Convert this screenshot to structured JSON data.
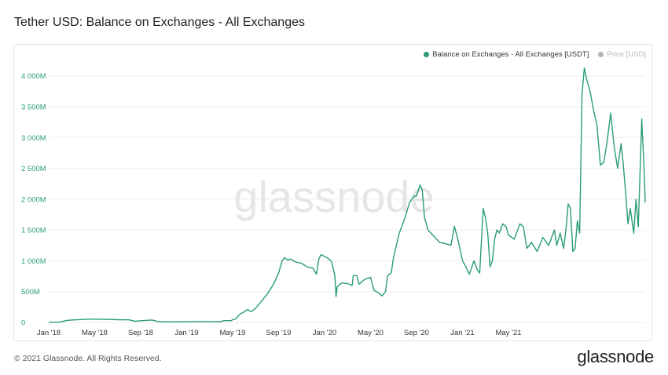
{
  "page": {
    "title": "Tether USD: Balance on Exchanges - All Exchanges",
    "copyright": "© 2021 Glassnode. All Rights Reserved.",
    "brand": "glassnode",
    "watermark": "glassnode"
  },
  "colors": {
    "series": "#2a9d74",
    "price": "#9a9a9a",
    "grid": "#eeeeee"
  },
  "chart_data": {
    "type": "line",
    "title": "Tether USD: Balance on Exchanges - All Exchanges",
    "legend_position": "top-right",
    "grid": true,
    "ylim": [
      0,
      4200
    ],
    "y_ticks": [
      {
        "value": 0,
        "label": "0"
      },
      {
        "value": 500,
        "label": "500M"
      },
      {
        "value": 1000,
        "label": "1 000M"
      },
      {
        "value": 1500,
        "label": "1 500M"
      },
      {
        "value": 2000,
        "label": "2 000M"
      },
      {
        "value": 2500,
        "label": "2 500M"
      },
      {
        "value": 3000,
        "label": "3 000M"
      },
      {
        "value": 3500,
        "label": "3 500M"
      },
      {
        "value": 4000,
        "label": "4 000M"
      }
    ],
    "x_ticks": [
      "Jan '18",
      "May '18",
      "Sep '18",
      "Jan '19",
      "May '19",
      "Sep '19",
      "Jan '20",
      "May '20",
      "Sep '20",
      "Jan '21",
      "May '21"
    ],
    "x_range_months": [
      0,
      40.7
    ],
    "series": [
      {
        "name": "Balance on Exchanges - All Exchanges [USDT]",
        "unit": "M",
        "points": [
          [
            0,
            2
          ],
          [
            0.6,
            5
          ],
          [
            1,
            8
          ],
          [
            1.5,
            30
          ],
          [
            2,
            40
          ],
          [
            3,
            48
          ],
          [
            4,
            55
          ],
          [
            5,
            50
          ],
          [
            6,
            45
          ],
          [
            7,
            42
          ],
          [
            7.5,
            20
          ],
          [
            8,
            28
          ],
          [
            9,
            40
          ],
          [
            9.5,
            15
          ],
          [
            10,
            10
          ],
          [
            11,
            10
          ],
          [
            12,
            12
          ],
          [
            13,
            15
          ],
          [
            14,
            14
          ],
          [
            15,
            13
          ],
          [
            15.2,
            28
          ],
          [
            15.9,
            30
          ],
          [
            16,
            45
          ],
          [
            16.3,
            60
          ],
          [
            16.6,
            130
          ],
          [
            17,
            170
          ],
          [
            17.3,
            210
          ],
          [
            17.6,
            175
          ],
          [
            18,
            230
          ],
          [
            18.5,
            340
          ],
          [
            19,
            460
          ],
          [
            19.5,
            600
          ],
          [
            20,
            800
          ],
          [
            20.3,
            1000
          ],
          [
            20.5,
            1050
          ],
          [
            20.8,
            1010
          ],
          [
            21,
            1030
          ],
          [
            21.5,
            980
          ],
          [
            22,
            960
          ],
          [
            22.5,
            900
          ],
          [
            23,
            880
          ],
          [
            23.3,
            780
          ],
          [
            23.5,
            1030
          ],
          [
            23.7,
            1100
          ],
          [
            24,
            1070
          ],
          [
            24.3,
            1040
          ],
          [
            24.6,
            990
          ],
          [
            24.9,
            760
          ],
          [
            25,
            420
          ],
          [
            25.1,
            580
          ],
          [
            25.5,
            640
          ],
          [
            26,
            630
          ],
          [
            26.4,
            600
          ],
          [
            26.5,
            760
          ],
          [
            26.8,
            760
          ],
          [
            27,
            620
          ],
          [
            27.5,
            700
          ],
          [
            28,
            730
          ],
          [
            28.3,
            520
          ],
          [
            28.7,
            480
          ],
          [
            29,
            430
          ],
          [
            29.3,
            500
          ],
          [
            29.5,
            760
          ],
          [
            29.8,
            800
          ],
          [
            30,
            1050
          ],
          [
            30.5,
            1450
          ],
          [
            31,
            1700
          ],
          [
            31.4,
            1950
          ],
          [
            31.8,
            2050
          ],
          [
            32,
            2050
          ],
          [
            32.3,
            2230
          ],
          [
            32.5,
            2150
          ],
          [
            32.7,
            1700
          ],
          [
            33,
            1500
          ],
          [
            33.5,
            1400
          ],
          [
            34,
            1300
          ],
          [
            34.5,
            1280
          ],
          [
            35,
            1250
          ],
          [
            35.3,
            1560
          ],
          [
            35.6,
            1350
          ],
          [
            36,
            1000
          ],
          [
            36.3,
            900
          ],
          [
            36.6,
            780
          ],
          [
            37,
            1000
          ],
          [
            37.3,
            850
          ],
          [
            37.5,
            800
          ],
          [
            37.8,
            1850
          ],
          [
            38,
            1700
          ],
          [
            38.2,
            1450
          ],
          [
            38.4,
            900
          ],
          [
            38.6,
            1000
          ],
          [
            38.8,
            1350
          ],
          [
            39,
            1500
          ],
          [
            39.2,
            1450
          ],
          [
            39.5,
            1600
          ],
          [
            39.8,
            1550
          ],
          [
            40,
            1420
          ],
          [
            40.5,
            1350
          ],
          [
            41,
            1600
          ],
          [
            41.3,
            1550
          ],
          [
            41.6,
            1200
          ],
          [
            42,
            1300
          ],
          [
            42.5,
            1150
          ],
          [
            43,
            1380
          ],
          [
            43.5,
            1250
          ],
          [
            43.8,
            1400
          ],
          [
            44,
            1500
          ],
          [
            44.2,
            1250
          ],
          [
            44.5,
            1450
          ],
          [
            44.8,
            1200
          ],
          [
            45,
            1500
          ],
          [
            45.2,
            1920
          ],
          [
            45.4,
            1850
          ],
          [
            45.6,
            1150
          ],
          [
            45.8,
            1200
          ],
          [
            46,
            1650
          ],
          [
            46.2,
            1450
          ],
          [
            46.4,
            3700
          ],
          [
            46.6,
            4130
          ],
          [
            46.8,
            3950
          ],
          [
            47.1,
            3750
          ],
          [
            47.4,
            3450
          ],
          [
            47.7,
            3200
          ],
          [
            48,
            2550
          ],
          [
            48.3,
            2600
          ],
          [
            48.6,
            2950
          ],
          [
            48.9,
            3400
          ],
          [
            49.2,
            2850
          ],
          [
            49.5,
            2500
          ],
          [
            49.8,
            2900
          ],
          [
            50,
            2550
          ],
          [
            50.2,
            2100
          ],
          [
            50.4,
            1600
          ],
          [
            50.6,
            1850
          ],
          [
            50.9,
            1450
          ],
          [
            51.1,
            2000
          ],
          [
            51.3,
            1550
          ],
          [
            51.6,
            3300
          ],
          [
            51.8,
            2500
          ],
          [
            51.9,
            1950
          ]
        ]
      }
    ],
    "legend": [
      {
        "label": "Balance on Exchanges - All Exchanges [USDT]",
        "active": true
      },
      {
        "label": "Price [USD]",
        "active": false
      }
    ]
  }
}
